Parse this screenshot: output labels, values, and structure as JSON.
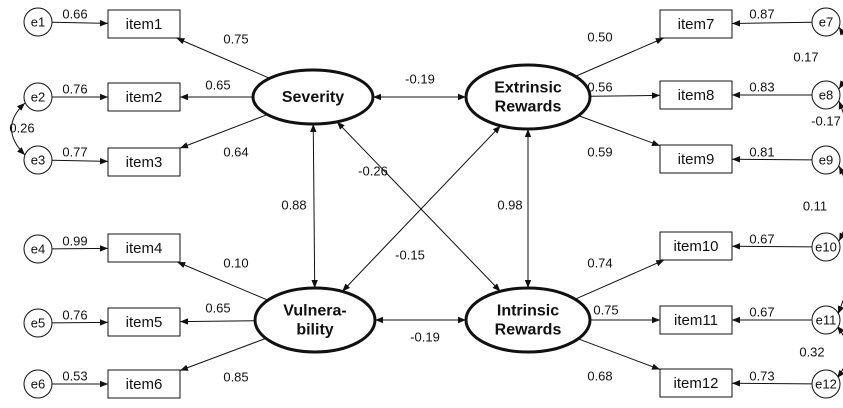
{
  "nodes": [
    {
      "label": "e1"
    },
    {
      "label": "e2"
    },
    {
      "label": "e3"
    },
    {
      "label": "e4"
    },
    {
      "label": "e5"
    },
    {
      "label": "e6"
    },
    {
      "label": "e7"
    },
    {
      "label": "e8"
    },
    {
      "label": "e9"
    },
    {
      "label": "e10"
    },
    {
      "label": "e11"
    },
    {
      "label": "e12"
    },
    {
      "label": "item1"
    },
    {
      "label": "item2"
    },
    {
      "label": "item3"
    },
    {
      "label": "item4"
    },
    {
      "label": "item5"
    },
    {
      "label": "item6"
    },
    {
      "label": "item7"
    },
    {
      "label": "item8"
    },
    {
      "label": "item9"
    },
    {
      "label": "item10"
    },
    {
      "label": "item11"
    },
    {
      "label": "item12"
    },
    {
      "lines": [
        "Severity"
      ]
    },
    {
      "lines": [
        "Vulnera-",
        "bility"
      ]
    },
    {
      "lines": [
        "Extrinsic",
        "Rewards"
      ]
    },
    {
      "lines": [
        "Intrinsic",
        "Rewards"
      ]
    }
  ],
  "edges": [
    {
      "label": "0.66"
    },
    {
      "label": "0.76"
    },
    {
      "label": "0.77"
    },
    {
      "label": "0.99"
    },
    {
      "label": "0.76"
    },
    {
      "label": "0.53"
    },
    {
      "label": "0.87"
    },
    {
      "label": "0.83"
    },
    {
      "label": "0.81"
    },
    {
      "label": "0.67"
    },
    {
      "label": "0.67"
    },
    {
      "label": "0.73"
    },
    {
      "label": "0.75"
    },
    {
      "label": "0.65"
    },
    {
      "label": "0.64"
    },
    {
      "label": "0.10"
    },
    {
      "label": "0.65"
    },
    {
      "label": "0.85"
    },
    {
      "label": "0.50"
    },
    {
      "label": "0.56"
    },
    {
      "label": "0.59"
    },
    {
      "label": "0.74"
    },
    {
      "label": "0.75"
    },
    {
      "label": "0.68"
    },
    {
      "label": "-0.19"
    },
    {
      "label": "-0.19"
    },
    {
      "label": "0.88"
    },
    {
      "label": "0.98"
    },
    {
      "label": "-0.26"
    },
    {
      "label": "-0.15"
    },
    {
      "label": "0.26"
    },
    {
      "label": "0.17"
    },
    {
      "label": "-0.17"
    },
    {
      "label": "0.11"
    },
    {
      "label": "0.32"
    }
  ]
}
